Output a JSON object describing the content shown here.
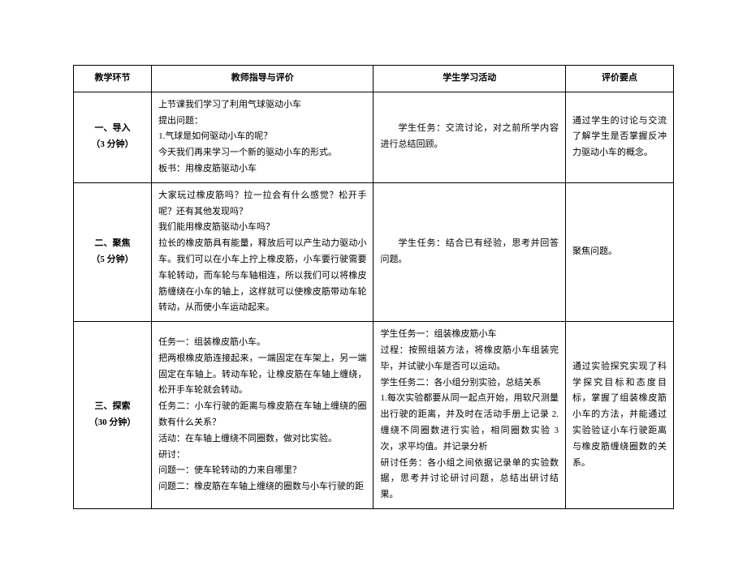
{
  "table": {
    "columns": [
      "教学环节",
      "教师指导与评价",
      "学生学习活动",
      "评价要点"
    ],
    "rows": [
      {
        "stage_label": "一、导入",
        "stage_time": "（3 分钟）",
        "teacher_lines": [
          "上节课我们学习了利用气球驱动小车",
          "提出问题：",
          "1.气球是如何驱动小车的呢？",
          "今天我们再来学习一个新的驱动小车的形式。",
          "板书：用橡皮筋驱动小车"
        ],
        "student": "学生任务：交流讨论，对之前所学内容进行总结回顾。",
        "eval": "通过学生的讨论与交流了解学生是否掌握反冲力驱动小车的概念。"
      },
      {
        "stage_label": "二、聚焦",
        "stage_time": "（5 分钟）",
        "teacher_lines": [
          "大家玩过橡皮筋吗？拉一拉会有什么感觉？松开手呢？还有其他发现吗？",
          "我们能用橡皮筋驱动小车吗？",
          "拉长的橡皮筋具有能量，释放后可以产生动力驱动小车。我们可以在小车上拧上橡皮筋，小车要行驶需要车轮转动，而车轮与车轴相连，所以我们可以将橡皮筋缠绕在小车的轴上，这样就可以使橡皮筋带动车轮转动，从而使小车运动起来。"
        ],
        "student": "学生任务：结合已有经验，思考并回答问题。",
        "eval": "聚焦问题。"
      },
      {
        "stage_label": "三、探索",
        "stage_time": "（30 分钟）",
        "teacher_lines": [
          "任务一：组装橡皮筋小车。",
          "把两根橡皮筋连接起来，一端固定在车架上，另一端固定在车轴上。转动车轮，让橡皮筋在车轴上缠绕，松开手车轮就会转动。",
          "任务二：小车行驶的距离与橡皮筋在车轴上缠绕的圈数有什么关系？",
          "活动：在车轴上缠绕不同圈数，做对比实验。",
          "研讨：",
          "问题一：使车轮转动的力来自哪里？",
          "问题二：橡皮筋在车轴上缠绕的圈数与小车行驶的距"
        ],
        "student_lines": [
          "学生任务一：组装橡皮筋小车",
          "过程：按照组装方法，将橡皮筋小车组装完毕，并试驶小车是否可以运动。",
          "学生任务二：各小组分别实验，总结关系",
          "1.每次实验都要从同一起点开始，用软尺测量出行驶的距离，并及时在活动手册上记录 2.缠绕不同圈数进行实验，相同圈数实验 3 次，求平均值。并记录分析",
          "研讨任务：各小组之间依据记录单的实验数据，思考并讨论研讨问题，总结出研讨结果。"
        ],
        "eval": "通过实验探究实现了科学探究目标和态度目标，掌握了组装橡皮筋小车的方法，并能通过实验验证小车行驶距离与橡皮筋缠绕圈数的关系。"
      }
    ],
    "colors": {
      "border": "#000000",
      "background": "#ffffff",
      "text": "#000000"
    },
    "font_size_pt": 11
  }
}
